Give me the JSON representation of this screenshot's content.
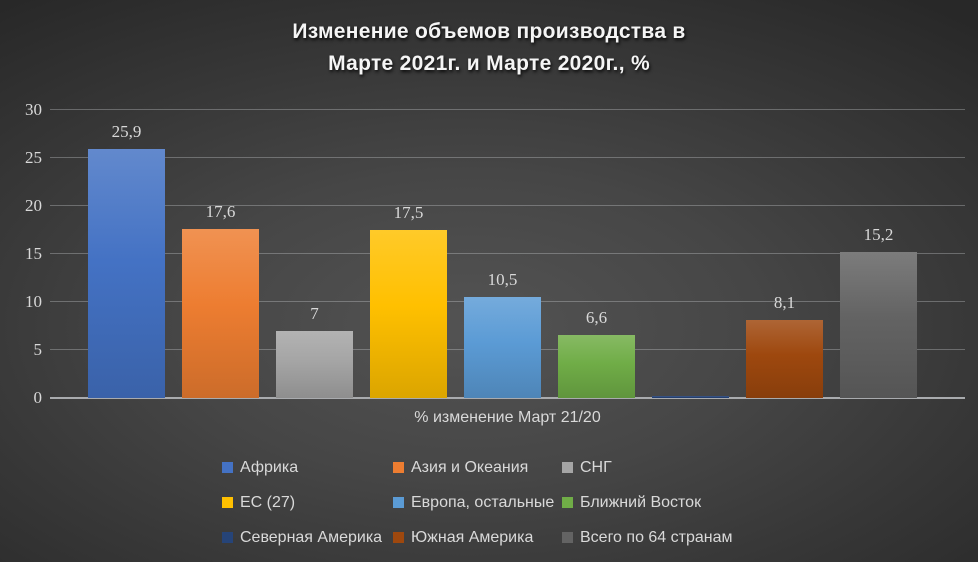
{
  "chart_data": {
    "type": "bar",
    "title": "Изменение объемов производства в Марте 2021г. и Марте 2020г., %",
    "title_lines": [
      "Изменение объемов производства в",
      "Марте 2021г. и Марте 2020г., %"
    ],
    "xlabel": "% изменение Март 21/20",
    "ylabel": "",
    "ylim": [
      0,
      30
    ],
    "yticks": [
      0,
      5,
      10,
      15,
      20,
      25,
      30
    ],
    "grid": true,
    "legend_position": "bottom",
    "categories": [
      "% изменение Март 21/20"
    ],
    "series": [
      {
        "name": "Африка",
        "value": 25.9,
        "label": "25,9",
        "color": "#4472C4"
      },
      {
        "name": "Азия и Океания",
        "value": 17.6,
        "label": "17,6",
        "color": "#ED7D31"
      },
      {
        "name": "СНГ",
        "value": 7,
        "label": "7",
        "color": "#A5A5A5"
      },
      {
        "name": "ЕС (27)",
        "value": 17.5,
        "label": "17,5",
        "color": "#FFC000"
      },
      {
        "name": "Европа, остальные",
        "value": 10.5,
        "label": "10,5",
        "color": "#5B9BD5"
      },
      {
        "name": "Ближний Восток",
        "value": 6.6,
        "label": "6,6",
        "color": "#70AD47"
      },
      {
        "name": "Северная Америка",
        "value": 0.2,
        "label": "",
        "color": "#264478"
      },
      {
        "name": "Южная Америка",
        "value": 8.1,
        "label": "8,1",
        "color": "#9E480E"
      },
      {
        "name": "Всего по 64 странам",
        "value": 15.2,
        "label": "15,2",
        "color": "#636363"
      }
    ]
  },
  "style": {
    "text_color": "#D9D9D9",
    "title_color": "#F5F5F5",
    "gridline_color": "rgba(214,218,222,0.32)",
    "axis_line_color": "#A9ABAE"
  }
}
